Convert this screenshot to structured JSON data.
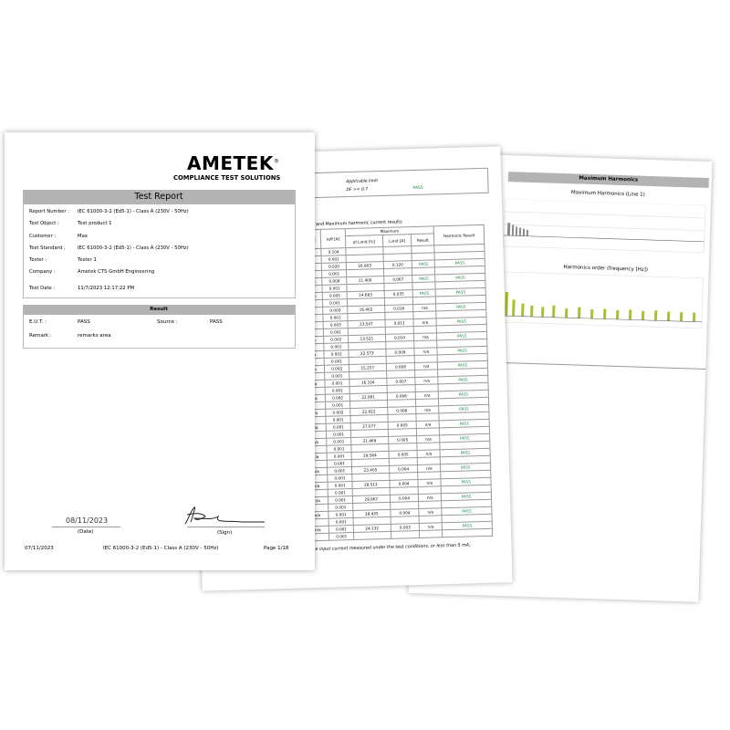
{
  "front": {
    "logo": "AMETEK",
    "logo_mark": "®",
    "tagline": "COMPLIANCE TEST SOLUTIONS",
    "title": "Test Report",
    "fields": [
      {
        "label": "Report Number :",
        "value": "IEC 61000-3-2 (Ed5-1) - Class A (230V - 50Hz)"
      },
      {
        "label": "Test Object :",
        "value": "Test product 1"
      },
      {
        "label": "Customer :",
        "value": "Max"
      },
      {
        "label": "Test Standard :",
        "value": "IEC 61000-3-2 (Ed5-1) - Class A (230V - 50Hz)"
      },
      {
        "label": "Tester :",
        "value": "Tester 1"
      },
      {
        "label": "Company :",
        "value": "Ametek CTS GmbH Engineering"
      },
      {
        "label": "Test Date :",
        "value": "11/7/2023 12:17:22 PM"
      }
    ],
    "result": {
      "title": "Result",
      "eut_label": "E.U.T. :",
      "eut": "PASS",
      "source_label": "Source :",
      "source": "PASS",
      "remark_label": "Remark :",
      "remark": "remarks area"
    },
    "date": "08/11/2023",
    "date_caption": "(Date)",
    "sign_caption": "(Sign)",
    "footer": {
      "date": "07/11/2023",
      "standard": "IEC 61000-3-2 (Ed5-1) - Class A (230V - 50Hz)",
      "page": "Page 1/18"
    }
  },
  "middle": {
    "limit_title": "Applicable limit",
    "limit_condition": "DF >= 0.7",
    "limit_result": "PASS",
    "table_title": "ge and Maximum harmonic current results",
    "headers": {
      "unit": "[A]",
      "result": "Result",
      "ieff": "Ieff [A]",
      "maximum": "Maximum",
      "pct": "of Limit [%]",
      "limit": "Limit [A]",
      "result2": "Result",
      "harmonic": "Harmonic Result"
    },
    "first": {
      "ieff": "0.104",
      "sub": "0.001"
    },
    "rows": [
      {
        "result": "PASS",
        "ieff": "0.020",
        "sub": "0.001",
        "pct": "16.903",
        "limit": "0.120",
        "result2": "PASS",
        "harmonic": "PASS"
      },
      {
        "result": "PASS",
        "ieff": "0.008",
        "sub": "0.001",
        "pct": "11.400",
        "limit": "0.067",
        "result2": "PASS",
        "harmonic": "PASS"
      },
      {
        "result": "PASS",
        "ieff": "0.005",
        "sub": "0.001",
        "pct": "14.663",
        "limit": "0.035",
        "result2": "PASS",
        "harmonic": "PASS"
      },
      {
        "result": "n/a",
        "ieff": "0.003",
        "sub": "0.001",
        "pct": "16.402",
        "limit": "0.018",
        "result2": "n/a",
        "harmonic": "PASS"
      },
      {
        "result": "n/a",
        "ieff": "0.003",
        "sub": "0.001",
        "pct": "23.507",
        "limit": "0.012",
        "result2": "n/a",
        "harmonic": "PASS"
      },
      {
        "result": "n/a",
        "ieff": "0.002",
        "sub": "0.001",
        "pct": "13.521",
        "limit": "0.010",
        "result2": "n/a",
        "harmonic": "PASS"
      },
      {
        "result": "n/a",
        "ieff": "0.002",
        "sub": "0.001",
        "pct": "22.573",
        "limit": "0.009",
        "result2": "n/a",
        "harmonic": "PASS"
      },
      {
        "result": "n/a",
        "ieff": "0.002",
        "sub": "0.001",
        "pct": "15.257",
        "limit": "0.008",
        "result2": "n/a",
        "harmonic": "PASS"
      },
      {
        "result": "n/a",
        "ieff": "0.001",
        "sub": "0.001",
        "pct": "16.104",
        "limit": "0.007",
        "result2": "n/a",
        "harmonic": "PASS"
      },
      {
        "result": "n/a",
        "ieff": "0.002",
        "sub": "0.001",
        "pct": "22.881",
        "limit": "0.006",
        "result2": "n/a",
        "harmonic": "PASS"
      },
      {
        "result": "n/a",
        "ieff": "0.002",
        "sub": "0.001",
        "pct": "22.822",
        "limit": "0.006",
        "result2": "n/a",
        "harmonic": "PASS"
      },
      {
        "result": "n/a",
        "ieff": "0.001",
        "sub": "0.001",
        "pct": "27.077",
        "limit": "0.005",
        "result2": "n/a",
        "harmonic": "PASS"
      },
      {
        "result": "n/a",
        "ieff": "0.001",
        "sub": "0.001",
        "pct": "21.469",
        "limit": "0.005",
        "result2": "n/a",
        "harmonic": "PASS"
      },
      {
        "result": "n/a",
        "ieff": "0.001",
        "sub": "0.001",
        "pct": "29.564",
        "limit": "0.005",
        "result2": "n/a",
        "harmonic": "PASS"
      },
      {
        "result": "n/a",
        "ieff": "0.001",
        "sub": "0.001",
        "pct": "23.405",
        "limit": "0.004",
        "result2": "n/a",
        "harmonic": "PASS"
      },
      {
        "result": "n/a",
        "ieff": "0.001",
        "sub": "0.001",
        "pct": "28.513",
        "limit": "0.004",
        "result2": "n/a",
        "harmonic": "PASS"
      },
      {
        "result": "n/a",
        "ieff": "0.001",
        "sub": "0.001",
        "pct": "29.867",
        "limit": "0.004",
        "result2": "n/a",
        "harmonic": "PASS"
      },
      {
        "result": "n/a",
        "ieff": "0.001",
        "sub": "0.001",
        "pct": "28.435",
        "limit": "0.004",
        "result2": "n/a",
        "harmonic": "PASS"
      },
      {
        "result": "n/a",
        "ieff": "0.001",
        "sub": "0.001",
        "pct": "24.132",
        "limit": "0.003",
        "result2": "n/a",
        "harmonic": "PASS"
      }
    ],
    "footnote": "e input current measured under the test conditions, or less than 5 mA,"
  },
  "back": {
    "header": "Maximum Harmonics",
    "chart_title": "Maximum Harmonics (Line 1)",
    "axis_label": "Harmonics order (frequency [Hz])"
  }
}
